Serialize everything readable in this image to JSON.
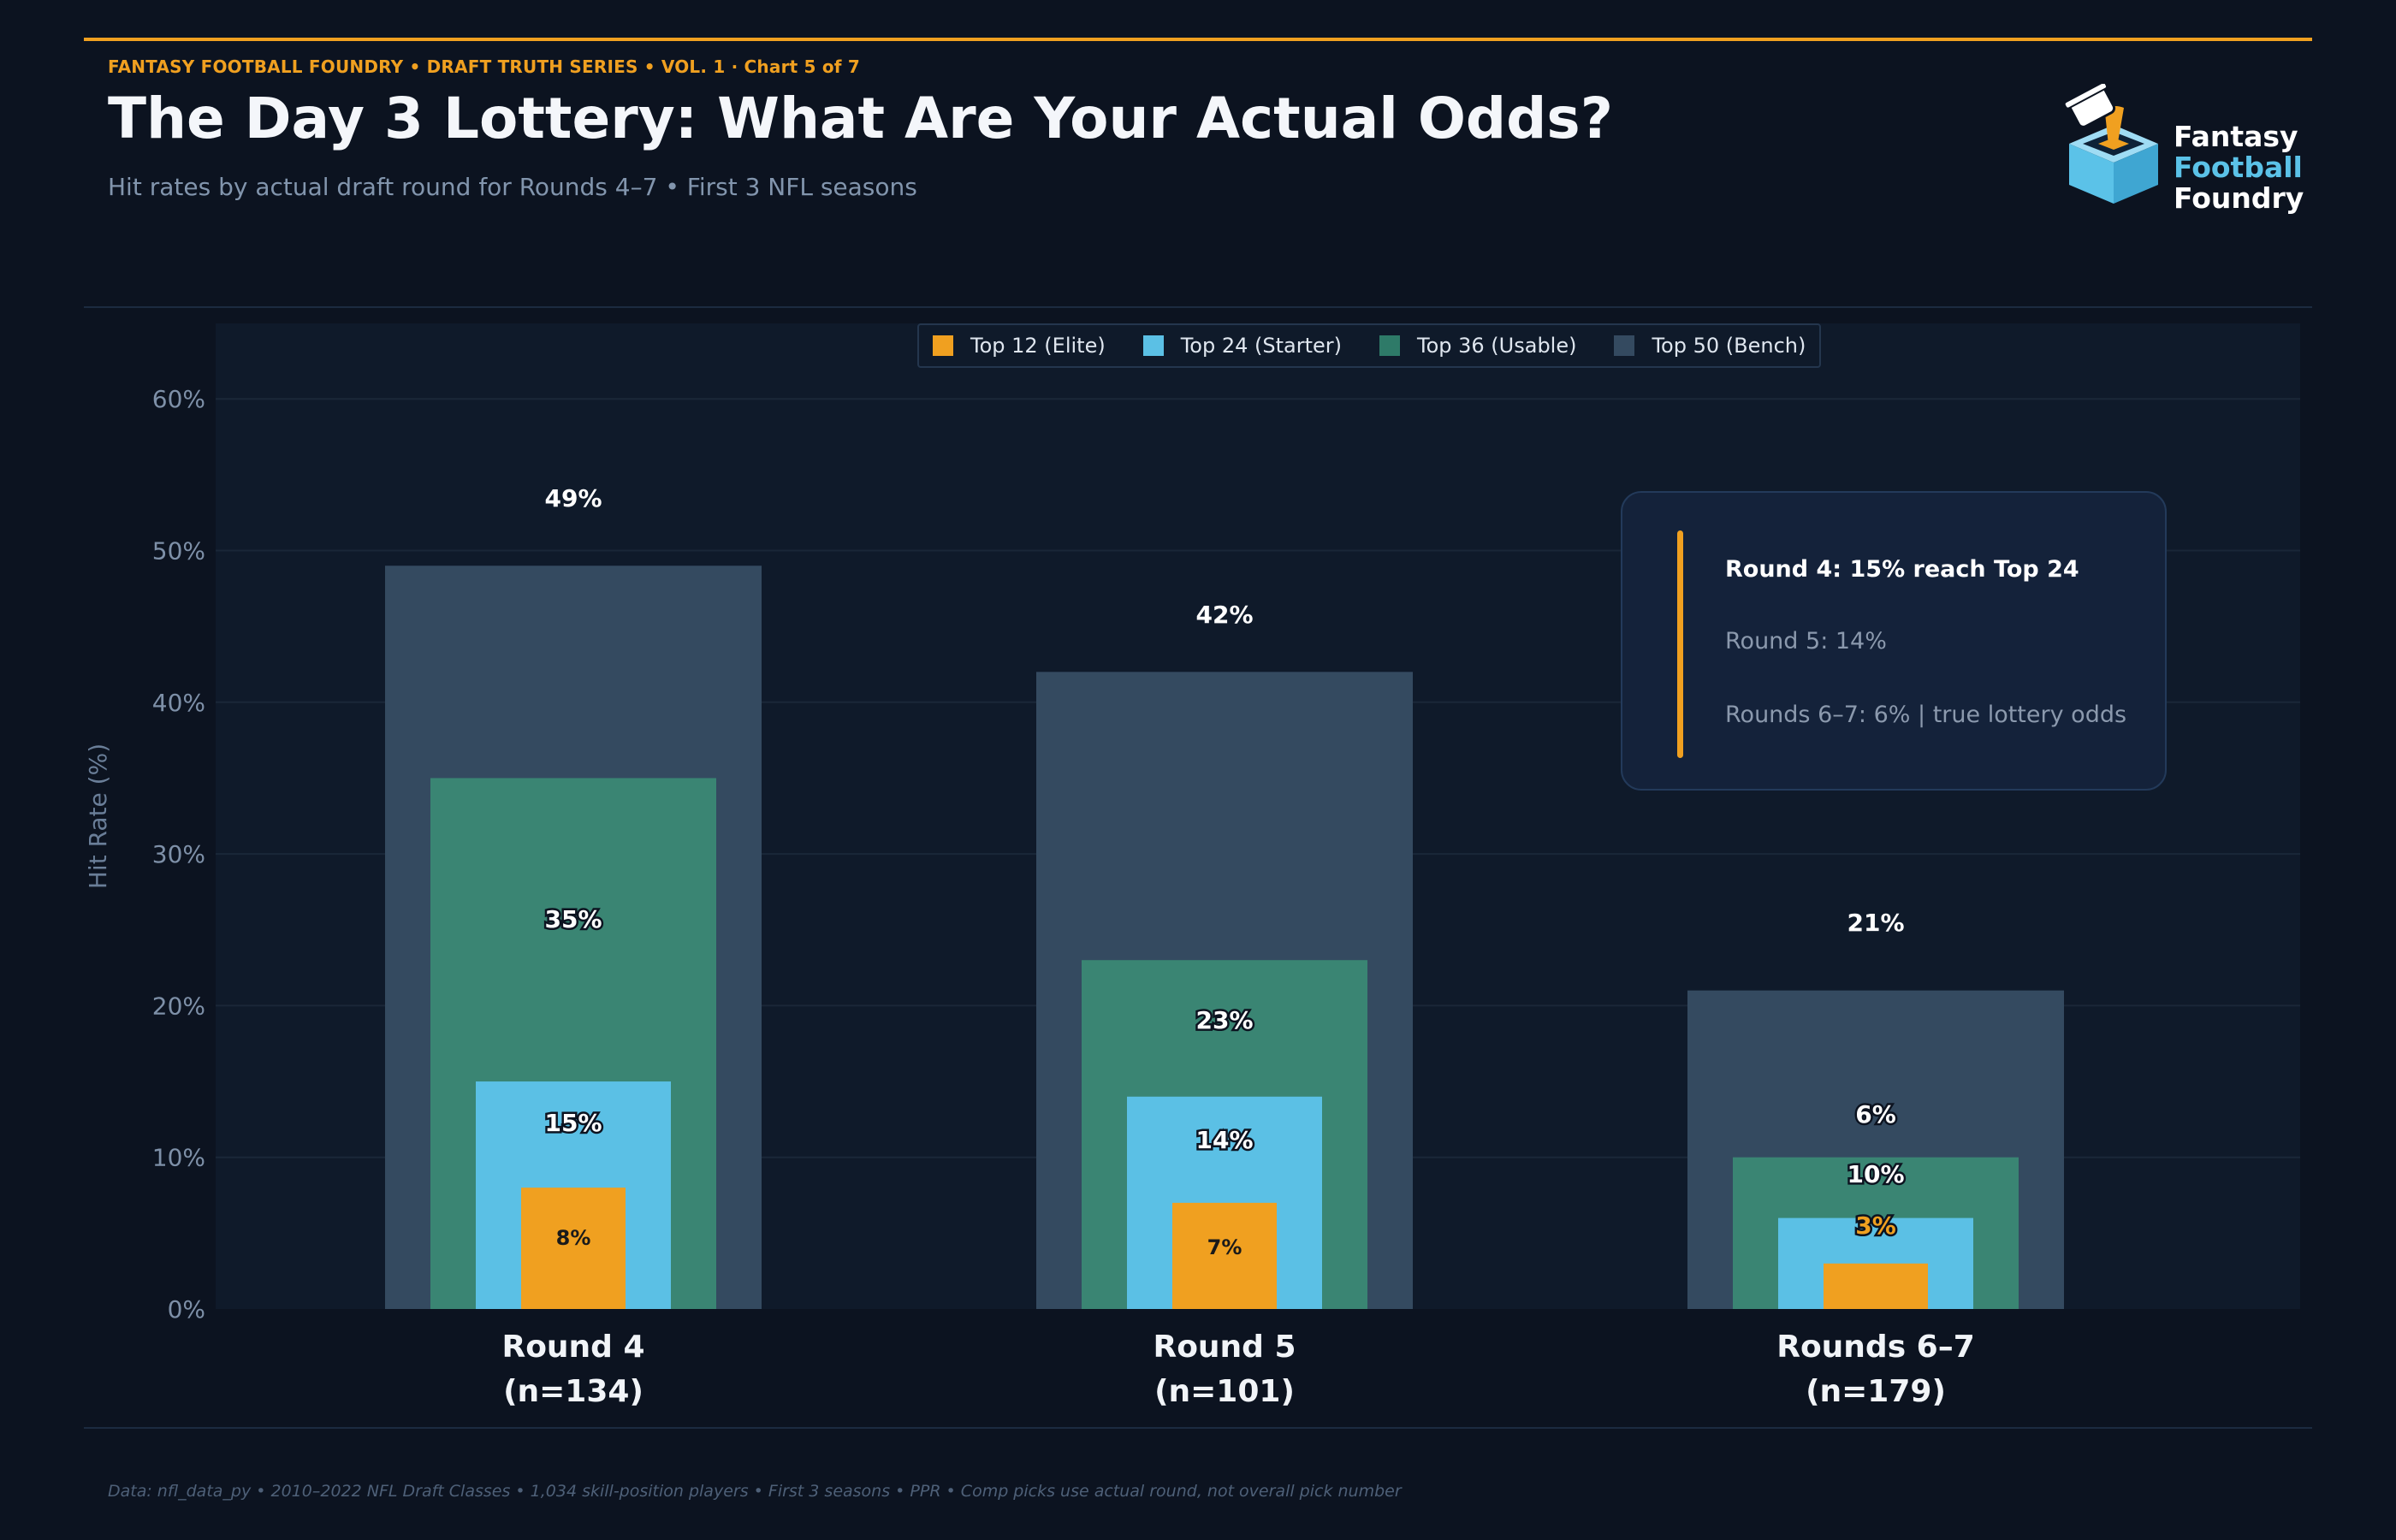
{
  "header": {
    "kicker": "FANTASY FOOTBALL FOUNDRY  •  DRAFT TRUTH SERIES  •  VOL. 1  ·  Chart 5 of 7",
    "title": "The Day 3 Lottery: What Are Your Actual Odds?",
    "subtitle": "Hit rates by actual draft round for Rounds 4–7  •  First 3 NFL seasons"
  },
  "logo": {
    "line1": "Fantasy",
    "line2": "Football",
    "line3": "Foundry"
  },
  "colors": {
    "accent": "#f0a020",
    "elite": "#f0a020",
    "starter": "#5bc0e5",
    "usable": "#3a8573",
    "bench": "#344a60",
    "plot_bg": "#0f1a2a",
    "page_bg": "#0c1320"
  },
  "legend": [
    {
      "label": "Top 12 (Elite)",
      "color": "#f0a020"
    },
    {
      "label": "Top 24 (Starter)",
      "color": "#5bc0e5"
    },
    {
      "label": "Top 36 (Usable)",
      "color": "#2e7a68"
    },
    {
      "label": "Top 50 (Bench)",
      "color": "#344a60"
    }
  ],
  "callout": {
    "line1": "Round 4: 15% reach Top 24",
    "line2": "Round 5: 14%",
    "line3": "Rounds 6–7: 6% | true lottery odds"
  },
  "chart_data": {
    "type": "bar",
    "layout": "overlapping-nested",
    "title": "The Day 3 Lottery: What Are Your Actual Odds?",
    "ylabel": "Hit Rate (%)",
    "xlabel": "",
    "ylim": [
      0,
      65
    ],
    "yticks": [
      0,
      10,
      20,
      30,
      40,
      50,
      60
    ],
    "ytick_labels": [
      "0%",
      "10%",
      "20%",
      "30%",
      "40%",
      "50%",
      "60%"
    ],
    "grid": true,
    "legend_position": "top-center",
    "categories": [
      "Round 4",
      "Round 5",
      "Rounds 6–7"
    ],
    "category_counts": [
      "(n=134)",
      "(n=101)",
      "(n=179)"
    ],
    "series": [
      {
        "name": "Top 50 (Bench)",
        "values": [
          49,
          42,
          21
        ],
        "labels": [
          "49%",
          "42%",
          "21%"
        ]
      },
      {
        "name": "Top 36 (Usable)",
        "values": [
          35,
          23,
          10
        ],
        "labels": [
          "35%",
          "23%",
          "10%"
        ]
      },
      {
        "name": "Top 24 (Starter)",
        "values": [
          15,
          14,
          6
        ],
        "labels": [
          "15%",
          "14%",
          "6%"
        ]
      },
      {
        "name": "Top 12 (Elite)",
        "values": [
          8,
          7,
          3
        ],
        "labels": [
          "8%",
          "7%",
          "3%"
        ]
      }
    ]
  },
  "footer": {
    "note": "Data: nfl_data_py  •  2010–2022 NFL Draft Classes  •  1,034 skill-position players  •  First 3 seasons  •  PPR  •  Comp picks use actual round, not overall pick number"
  }
}
